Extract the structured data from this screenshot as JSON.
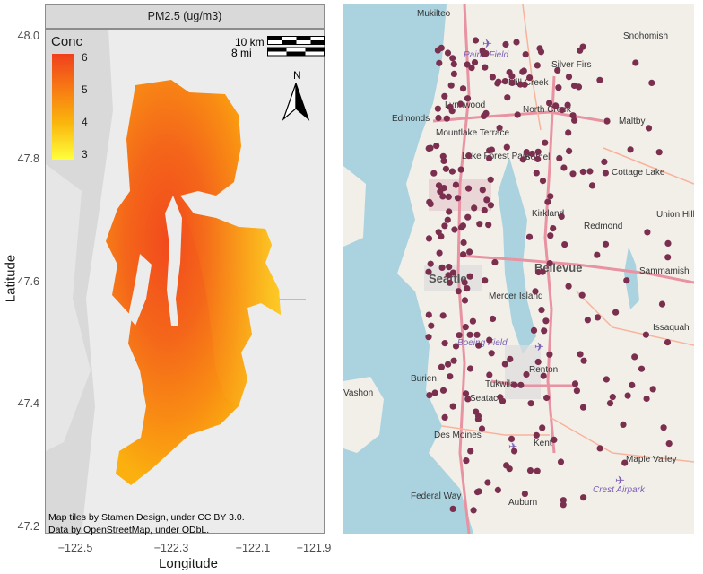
{
  "left_panel": {
    "title": "PM2.5 (ug/m3)",
    "y_axis_title": "Latitude",
    "x_axis_title": "Longitude",
    "y_ticks": [
      "48.0",
      "47.8",
      "47.6",
      "47.4",
      "47.2"
    ],
    "x_ticks": [
      "−122.5",
      "−122.3",
      "−122.1",
      "−121.9"
    ],
    "legend": {
      "title": "Conc",
      "ticks": [
        "6",
        "5",
        "4",
        "3"
      ],
      "colors": [
        "#f0401d",
        "#f77e12",
        "#fab50c",
        "#ffff3d"
      ]
    },
    "scale_bar": {
      "km_label": "10 km",
      "mi_label": "8 mi"
    },
    "north_arrow": {
      "label": "N",
      "icon": "north-arrow-icon"
    },
    "credits": [
      "Map tiles by Stamen Design, under CC BY 3.0.",
      "Data by OpenStreetMap, under ODbL."
    ]
  },
  "right_panel": {
    "place_labels": [
      "Mukilteo",
      "Snohomish",
      "Paine Field",
      "Silver Firs",
      "Mill Creek",
      "Lynnwood",
      "North Creek",
      "Maltby",
      "Edmonds",
      "Mountlake Terrace",
      "Bothell",
      "Lake Forest Park",
      "Cottage Lake",
      "Kirkland",
      "Redmond",
      "Union Hill-Novelty",
      "Bellevue",
      "Sammamish",
      "Seattle",
      "Mercer Island",
      "Issaquah",
      "Boeing Field",
      "Renton",
      "Burien",
      "Seatac",
      "Tukwila",
      "Des Moines",
      "Kent",
      "Maple Valley",
      "Crest Airpark",
      "Federal Way",
      "Auburn",
      "Vashon"
    ],
    "colors": {
      "water": "#aad3df",
      "land": "#f2efe9",
      "marker": "#7b2f4e"
    }
  }
}
